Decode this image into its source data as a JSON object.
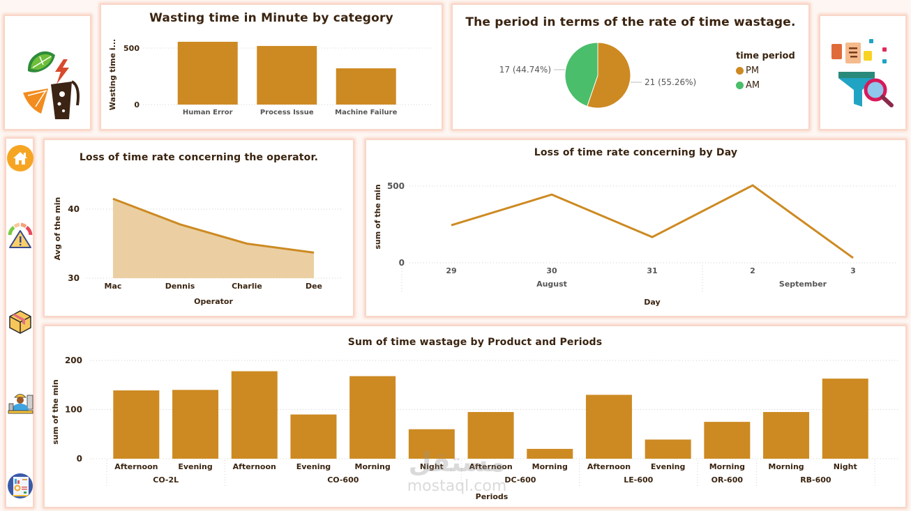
{
  "colors": {
    "accent": "#cd8a22",
    "area_fill": "#ebcfa3",
    "am_green": "#4abe6a",
    "panel_shadow": "#f8cdbc",
    "title_text": "#3a2410"
  },
  "sidebar": {
    "items": [
      {
        "name": "home",
        "icon": "home-icon"
      },
      {
        "name": "warning-gauge",
        "icon": "warning-gauge-icon"
      },
      {
        "name": "product",
        "icon": "box-icon"
      },
      {
        "name": "operator",
        "icon": "worker-icon"
      },
      {
        "name": "report",
        "icon": "report-icon"
      }
    ]
  },
  "logos": {
    "left": "drinks-logo-icon",
    "right": "data-filter-icon"
  },
  "watermark": {
    "arabic": "مستقل",
    "latin": "mostaql.com"
  },
  "chart_data": [
    {
      "id": "category",
      "type": "bar",
      "title": "Wasting time in Minute by category",
      "xlabel": "",
      "ylabel": "Wasting time i...",
      "categories": [
        "Human Error",
        "Process Issue",
        "Machine Failure"
      ],
      "values": [
        556,
        519,
        321
      ],
      "yticks": [
        "0",
        "500"
      ],
      "ylim": [
        0,
        600
      ],
      "grid": true
    },
    {
      "id": "period",
      "type": "pie",
      "title": "The period in terms of the rate of time wastage.",
      "legend_title": "time period",
      "legend_position": "right",
      "slices": [
        {
          "label": "PM",
          "value": 21,
          "percent": "55.26%",
          "data_label": "21 (55.26%)",
          "color": "#cd8a22"
        },
        {
          "label": "AM",
          "value": 17,
          "percent": "44.74%",
          "data_label": "17 (44.74%)",
          "color": "#4abe6a"
        }
      ]
    },
    {
      "id": "operator",
      "type": "area",
      "title": "Loss of time rate concerning the operator.",
      "xlabel": "Operator",
      "ylabel": "Avg of the min",
      "categories": [
        "Mac",
        "Dennis",
        "Charlie",
        "Dee"
      ],
      "values": [
        41.5,
        37.8,
        35.0,
        33.7
      ],
      "yticks": [
        "30",
        "40"
      ],
      "ylim": [
        30,
        42.5
      ],
      "grid": true
    },
    {
      "id": "day",
      "type": "line",
      "title": "Loss of time rate concerning by Day",
      "xlabel": "Day",
      "ylabel": "sum of the min",
      "categories": [
        "29",
        "30",
        "31",
        "2",
        "3"
      ],
      "groups": [
        {
          "label": "August",
          "span": 3
        },
        {
          "label": "September",
          "span": 2
        }
      ],
      "values": [
        245,
        445,
        168,
        505,
        32
      ],
      "yticks": [
        "0",
        "500"
      ],
      "ylim": [
        0,
        520
      ],
      "grid": true
    },
    {
      "id": "product",
      "type": "bar",
      "title": "Sum of time wastage by Product and Periods",
      "xlabel": "Periods",
      "ylabel": "sum of the min",
      "categories": [
        "Afternoon",
        "Evening",
        "Afternoon",
        "Evening",
        "Morning",
        "Night",
        "Afternoon",
        "Morning",
        "Afternoon",
        "Evening",
        "Morning",
        "Morning",
        "Night"
      ],
      "groups": [
        {
          "label": "CO-2L",
          "span": 2
        },
        {
          "label": "CO-600",
          "span": 4
        },
        {
          "label": "DC-600",
          "span": 2
        },
        {
          "label": "LE-600",
          "span": 2
        },
        {
          "label": "OR-600",
          "span": 1
        },
        {
          "label": "RB-600",
          "span": 2
        }
      ],
      "values": [
        139,
        140,
        178,
        90,
        168,
        60,
        95,
        20,
        130,
        39,
        75,
        95,
        163
      ],
      "yticks": [
        "0",
        "100",
        "200"
      ],
      "ylim": [
        0,
        200
      ],
      "grid": true
    }
  ]
}
